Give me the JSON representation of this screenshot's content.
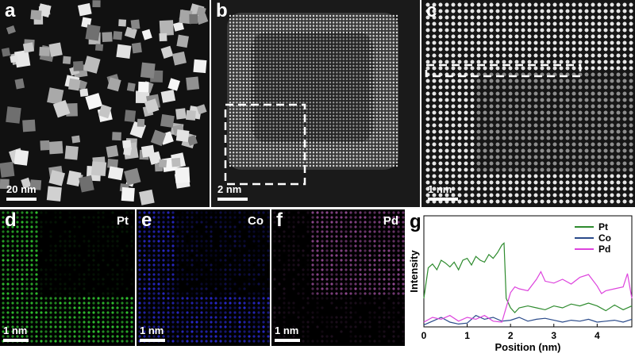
{
  "panels": {
    "a": {
      "label": "a",
      "scale_bar": "20 nm"
    },
    "b": {
      "label": "b",
      "scale_bar": "2 nm"
    },
    "c": {
      "label": "c",
      "scale_bar": "1 nm"
    },
    "d": {
      "label": "d",
      "element": "Pt",
      "scale_bar": "1 nm",
      "color": "#33cc33"
    },
    "e": {
      "label": "e",
      "element": "Co",
      "scale_bar": "1 nm",
      "color": "#3333ff"
    },
    "f": {
      "label": "f",
      "element": "Pd",
      "scale_bar": "1 nm",
      "color": "#cc66cc"
    },
    "g": {
      "label": "g"
    }
  },
  "chart_data": {
    "type": "line",
    "xlabel": "Position (nm)",
    "ylabel": "Intensity",
    "xlim": [
      0,
      4.8
    ],
    "xticks": [
      "0",
      "1",
      "2",
      "3",
      "4"
    ],
    "legend_placement": "top-right",
    "series": [
      {
        "name": "Pt",
        "color": "#2e8b2e",
        "x": [
          0,
          0.1,
          0.2,
          0.3,
          0.4,
          0.5,
          0.6,
          0.7,
          0.8,
          0.9,
          1.0,
          1.1,
          1.2,
          1.3,
          1.4,
          1.5,
          1.6,
          1.7,
          1.8,
          1.85,
          1.9,
          2.0,
          2.1,
          2.2,
          2.4,
          2.6,
          2.8,
          3.0,
          3.2,
          3.4,
          3.6,
          3.8,
          4.0,
          4.2,
          4.4,
          4.6,
          4.8
        ],
        "y": [
          0.3,
          0.62,
          0.66,
          0.6,
          0.7,
          0.67,
          0.63,
          0.68,
          0.6,
          0.7,
          0.72,
          0.65,
          0.74,
          0.7,
          0.68,
          0.76,
          0.72,
          0.78,
          0.86,
          0.88,
          0.3,
          0.2,
          0.15,
          0.2,
          0.22,
          0.2,
          0.18,
          0.22,
          0.2,
          0.24,
          0.22,
          0.25,
          0.22,
          0.17,
          0.23,
          0.18,
          0.22
        ]
      },
      {
        "name": "Co",
        "color": "#2a4a8a",
        "x": [
          0,
          0.2,
          0.4,
          0.6,
          0.8,
          1.0,
          1.2,
          1.4,
          1.6,
          1.8,
          2.0,
          2.2,
          2.4,
          2.6,
          2.8,
          3.0,
          3.2,
          3.4,
          3.6,
          3.8,
          4.0,
          4.2,
          4.4,
          4.6,
          4.8
        ],
        "y": [
          0.02,
          0.06,
          0.1,
          0.05,
          0.03,
          0.04,
          0.12,
          0.08,
          0.1,
          0.06,
          0.07,
          0.1,
          0.06,
          0.08,
          0.09,
          0.07,
          0.05,
          0.07,
          0.06,
          0.08,
          0.05,
          0.06,
          0.07,
          0.05,
          0.08
        ]
      },
      {
        "name": "Pd",
        "color": "#dd44dd",
        "x": [
          0,
          0.2,
          0.4,
          0.6,
          0.8,
          1.0,
          1.2,
          1.4,
          1.6,
          1.8,
          2.0,
          2.1,
          2.2,
          2.4,
          2.6,
          2.7,
          2.8,
          3.0,
          3.2,
          3.4,
          3.6,
          3.8,
          4.0,
          4.1,
          4.2,
          4.4,
          4.6,
          4.7,
          4.8
        ],
        "y": [
          0.05,
          0.1,
          0.08,
          0.12,
          0.06,
          0.1,
          0.08,
          0.12,
          0.06,
          0.05,
          0.36,
          0.42,
          0.4,
          0.38,
          0.5,
          0.58,
          0.48,
          0.46,
          0.5,
          0.45,
          0.52,
          0.55,
          0.43,
          0.35,
          0.38,
          0.4,
          0.42,
          0.56,
          0.3
        ]
      }
    ]
  }
}
